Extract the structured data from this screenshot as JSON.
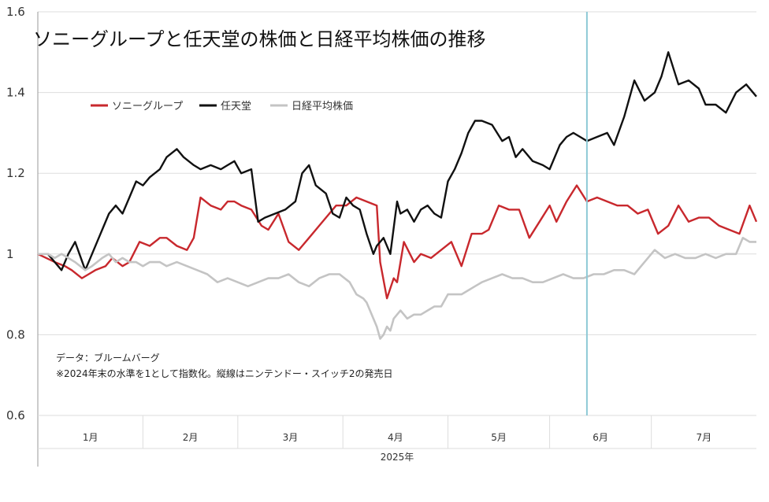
{
  "chart_data": {
    "type": "line",
    "title": "ソニーグループと任天堂の株価と日経平均株価の推移",
    "y_ticks": [
      "1.6",
      "1.4",
      "1.2",
      "1",
      "0.8",
      "0.6"
    ],
    "y_tick_values": [
      1.6,
      1.4,
      1.2,
      1.0,
      0.8,
      0.6
    ],
    "ylim": [
      0.6,
      1.6
    ],
    "months": [
      "1月",
      "2月",
      "3月",
      "4月",
      "5月",
      "6月",
      "7月"
    ],
    "year_label": "2025年",
    "x_range_days": [
      0,
      212
    ],
    "month_boundaries_days": [
      0,
      31,
      59,
      90,
      121,
      151,
      181
    ],
    "vline_day": 162,
    "grid": true,
    "legend_position": "top-left",
    "notes": [
      "データ：ブルームバーグ",
      "※2024年末の水準を1として指数化。縦線はニンテンドー・スイッチ2の発売日"
    ],
    "series": [
      {
        "name": "ソニーグループ",
        "color": "#c8282d",
        "x": [
          0,
          5,
          8,
          10,
          13,
          15,
          17,
          20,
          22,
          25,
          27,
          30,
          33,
          36,
          38,
          41,
          44,
          46,
          48,
          51,
          54,
          56,
          58,
          60,
          63,
          66,
          68,
          71,
          74,
          77,
          80,
          83,
          86,
          88,
          91,
          94,
          97,
          100,
          101,
          103,
          105,
          106,
          108,
          111,
          113,
          116,
          119,
          122,
          125,
          128,
          131,
          133,
          136,
          139,
          142,
          145,
          148,
          151,
          153,
          156,
          159,
          162,
          165,
          168,
          171,
          174,
          177,
          180,
          183,
          186,
          189,
          192,
          195,
          198,
          201,
          204,
          207,
          210,
          212
        ],
        "values": [
          1.0,
          0.98,
          0.97,
          0.96,
          0.94,
          0.95,
          0.96,
          0.97,
          0.99,
          0.97,
          0.98,
          1.03,
          1.02,
          1.04,
          1.04,
          1.02,
          1.01,
          1.04,
          1.14,
          1.12,
          1.11,
          1.13,
          1.13,
          1.12,
          1.11,
          1.07,
          1.06,
          1.1,
          1.03,
          1.01,
          1.04,
          1.07,
          1.1,
          1.12,
          1.12,
          1.14,
          1.13,
          1.12,
          0.98,
          0.89,
          0.94,
          0.93,
          1.03,
          0.98,
          1.0,
          0.99,
          1.01,
          1.03,
          0.97,
          1.05,
          1.05,
          1.06,
          1.12,
          1.11,
          1.11,
          1.04,
          1.08,
          1.12,
          1.08,
          1.13,
          1.17,
          1.13,
          1.14,
          1.13,
          1.12,
          1.12,
          1.1,
          1.11,
          1.05,
          1.07,
          1.12,
          1.08,
          1.09,
          1.09,
          1.07,
          1.06,
          1.05,
          1.12,
          1.08
        ]
      },
      {
        "name": "任天堂",
        "color": "#111111",
        "x": [
          0,
          3,
          5,
          7,
          9,
          11,
          14,
          16,
          19,
          21,
          23,
          25,
          27,
          29,
          31,
          33,
          36,
          38,
          41,
          43,
          46,
          48,
          51,
          54,
          56,
          58,
          60,
          63,
          65,
          67,
          70,
          73,
          76,
          78,
          80,
          82,
          85,
          87,
          89,
          91,
          93,
          95,
          97,
          99,
          100,
          102,
          104,
          106,
          107,
          109,
          111,
          113,
          115,
          117,
          119,
          121,
          123,
          125,
          127,
          129,
          131,
          134,
          137,
          139,
          141,
          143,
          146,
          149,
          151,
          154,
          156,
          158,
          160,
          162,
          165,
          168,
          170,
          173,
          176,
          179,
          182,
          184,
          186,
          189,
          192,
          195,
          197,
          200,
          203,
          206,
          209,
          212
        ],
        "values": [
          1.0,
          1.0,
          0.98,
          0.96,
          1.0,
          1.03,
          0.96,
          1.0,
          1.06,
          1.1,
          1.12,
          1.1,
          1.14,
          1.18,
          1.17,
          1.19,
          1.21,
          1.24,
          1.26,
          1.24,
          1.22,
          1.21,
          1.22,
          1.21,
          1.22,
          1.23,
          1.2,
          1.21,
          1.08,
          1.09,
          1.1,
          1.11,
          1.13,
          1.2,
          1.22,
          1.17,
          1.15,
          1.1,
          1.09,
          1.14,
          1.12,
          1.11,
          1.05,
          1.0,
          1.02,
          1.04,
          1.0,
          1.13,
          1.1,
          1.11,
          1.08,
          1.11,
          1.12,
          1.1,
          1.09,
          1.18,
          1.21,
          1.25,
          1.3,
          1.33,
          1.33,
          1.32,
          1.28,
          1.29,
          1.24,
          1.26,
          1.23,
          1.22,
          1.21,
          1.27,
          1.29,
          1.3,
          1.29,
          1.28,
          1.29,
          1.3,
          1.27,
          1.34,
          1.43,
          1.38,
          1.4,
          1.44,
          1.5,
          1.42,
          1.43,
          1.41,
          1.37,
          1.37,
          1.35,
          1.4,
          1.42,
          1.39
        ]
      },
      {
        "name": "日経平均株価",
        "color": "#c4c4c4",
        "x": [
          0,
          3,
          5,
          7,
          9,
          11,
          14,
          16,
          19,
          21,
          23,
          25,
          27,
          29,
          31,
          33,
          36,
          38,
          41,
          44,
          47,
          50,
          53,
          56,
          59,
          62,
          65,
          68,
          71,
          74,
          77,
          80,
          83,
          86,
          89,
          92,
          94,
          96,
          97,
          98,
          99,
          100,
          101,
          102,
          103,
          104,
          105,
          107,
          109,
          111,
          113,
          115,
          117,
          119,
          121,
          123,
          125,
          127,
          129,
          131,
          134,
          137,
          140,
          143,
          146,
          149,
          152,
          155,
          158,
          161,
          164,
          167,
          170,
          173,
          176,
          179,
          182,
          185,
          188,
          191,
          194,
          197,
          200,
          203,
          206,
          208,
          210,
          212
        ],
        "values": [
          1.0,
          1.0,
          0.99,
          1.0,
          0.99,
          0.98,
          0.96,
          0.97,
          0.99,
          1.0,
          0.98,
          0.99,
          0.98,
          0.98,
          0.97,
          0.98,
          0.98,
          0.97,
          0.98,
          0.97,
          0.96,
          0.95,
          0.93,
          0.94,
          0.93,
          0.92,
          0.93,
          0.94,
          0.94,
          0.95,
          0.93,
          0.92,
          0.94,
          0.95,
          0.95,
          0.93,
          0.9,
          0.89,
          0.88,
          0.86,
          0.84,
          0.82,
          0.79,
          0.8,
          0.82,
          0.81,
          0.84,
          0.86,
          0.84,
          0.85,
          0.85,
          0.86,
          0.87,
          0.87,
          0.9,
          0.9,
          0.9,
          0.91,
          0.92,
          0.93,
          0.94,
          0.95,
          0.94,
          0.94,
          0.93,
          0.93,
          0.94,
          0.95,
          0.94,
          0.94,
          0.95,
          0.95,
          0.96,
          0.96,
          0.95,
          0.98,
          1.01,
          0.99,
          1.0,
          0.99,
          0.99,
          1.0,
          0.99,
          1.0,
          1.0,
          1.04,
          1.03,
          1.03
        ]
      }
    ]
  },
  "colors": {
    "background": "#ffffff",
    "grid": "#dddddd",
    "axis": "#999999",
    "vline": "#8ec9d6",
    "text": "#333333"
  }
}
